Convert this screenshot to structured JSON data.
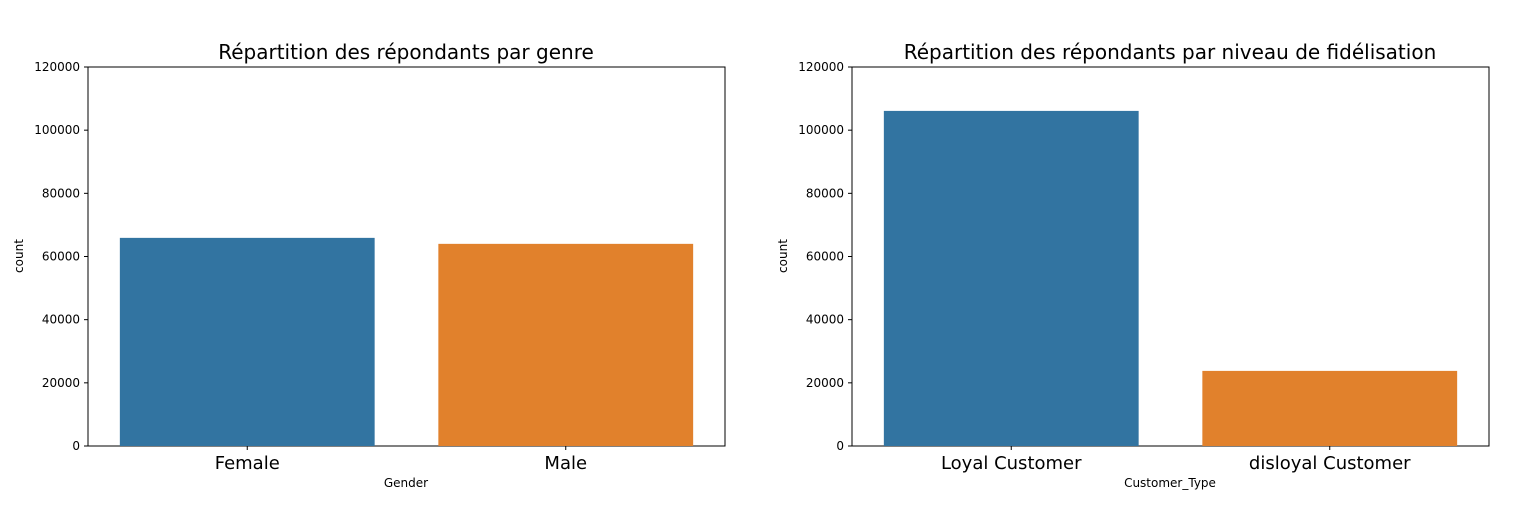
{
  "chart_data": [
    {
      "type": "bar",
      "title": "Répartition des répondants par genre",
      "xlabel": "Gender",
      "ylabel": "count",
      "categories": [
        "Female",
        "Male"
      ],
      "values": [
        65899,
        64005
      ],
      "colors": [
        "#3274a1",
        "#e1812c"
      ],
      "ylim": [
        0,
        120000
      ],
      "yticks": [
        0,
        20000,
        40000,
        60000,
        80000,
        100000,
        120000
      ],
      "grid": false
    },
    {
      "type": "bar",
      "title": "Répartition des répondants par niveau de fidélisation",
      "xlabel": "Customer_Type",
      "ylabel": "count",
      "categories": [
        "Loyal Customer",
        "disloyal Customer"
      ],
      "values": [
        106100,
        23780
      ],
      "colors": [
        "#3274a1",
        "#e1812c"
      ],
      "ylim": [
        0,
        120000
      ],
      "yticks": [
        0,
        20000,
        40000,
        60000,
        80000,
        100000,
        120000
      ],
      "grid": false
    }
  ]
}
